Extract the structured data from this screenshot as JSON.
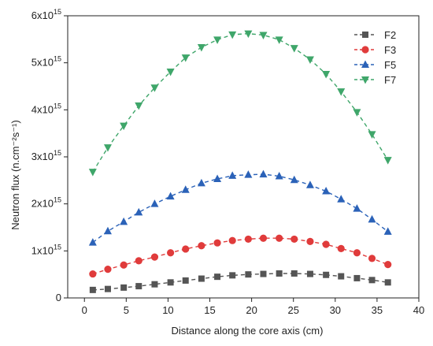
{
  "chart_data": {
    "type": "line",
    "xlabel": "Distance along the core axis (cm)",
    "ylabel": "Neutron flux (n.cm⁻²s⁻¹)",
    "xlim": [
      -2,
      40
    ],
    "ylim": [
      0,
      6000000000000000.0
    ],
    "xticks": [
      0,
      5,
      10,
      15,
      20,
      25,
      30,
      35,
      40
    ],
    "yticks": [
      {
        "value": 0,
        "base": "0",
        "exp": ""
      },
      {
        "value": 1000000000000000.0,
        "base": "1x10",
        "exp": "15"
      },
      {
        "value": 2000000000000000.0,
        "base": "2x10",
        "exp": "15"
      },
      {
        "value": 3000000000000000.0,
        "base": "3x10",
        "exp": "15"
      },
      {
        "value": 4000000000000000.0,
        "base": "4x10",
        "exp": "15"
      },
      {
        "value": 5000000000000000.0,
        "base": "5x10",
        "exp": "15"
      },
      {
        "value": 6000000000000000.0,
        "base": "6x10",
        "exp": "15"
      }
    ],
    "legend_position": "top-right",
    "grid": false,
    "x": [
      1.0,
      2.8,
      4.7,
      6.5,
      8.4,
      10.3,
      12.1,
      14.0,
      15.9,
      17.7,
      19.6,
      21.4,
      23.3,
      25.1,
      27.0,
      28.9,
      30.7,
      32.6,
      34.4,
      36.3
    ],
    "series": [
      {
        "name": "F2",
        "marker": "square",
        "color": "#555555",
        "values": [
          170000000000000.0,
          190000000000000.0,
          220000000000000.0,
          250000000000000.0,
          290000000000000.0,
          330000000000000.0,
          370000000000000.0,
          410000000000000.0,
          450000000000000.0,
          480000000000000.0,
          500000000000000.0,
          510000000000000.0,
          520000000000000.0,
          520000000000000.0,
          510000000000000.0,
          490000000000000.0,
          460000000000000.0,
          420000000000000.0,
          380000000000000.0,
          330000000000000.0
        ]
      },
      {
        "name": "F3",
        "marker": "circle",
        "color": "#e03b3b",
        "values": [
          510000000000000.0,
          610000000000000.0,
          700000000000000.0,
          790000000000000.0,
          870000000000000.0,
          960000000000000.0,
          1040000000000000.0,
          1110000000000000.0,
          1170000000000000.0,
          1220000000000000.0,
          1250000000000000.0,
          1270000000000000.0,
          1270000000000000.0,
          1250000000000000.0,
          1200000000000000.0,
          1140000000000000.0,
          1050000000000000.0,
          960000000000000.0,
          840000000000000.0,
          710000000000000.0
        ]
      },
      {
        "name": "F5",
        "marker": "triangle-up",
        "color": "#2b62b8",
        "values": [
          1180000000000000.0,
          1420000000000000.0,
          1620000000000000.0,
          1820000000000000.0,
          2000000000000000.0,
          2160000000000000.0,
          2300000000000000.0,
          2440000000000000.0,
          2530000000000000.0,
          2600000000000000.0,
          2620000000000000.0,
          2630000000000000.0,
          2590000000000000.0,
          2510000000000000.0,
          2400000000000000.0,
          2270000000000000.0,
          2100000000000000.0,
          1900000000000000.0,
          1670000000000000.0,
          1410000000000000.0
        ]
      },
      {
        "name": "F7",
        "marker": "triangle-down",
        "color": "#3fa66a",
        "values": [
          2680000000000000.0,
          3200000000000000.0,
          3660000000000000.0,
          4090000000000000.0,
          4470000000000000.0,
          4810000000000000.0,
          5110000000000000.0,
          5330000000000000.0,
          5490000000000000.0,
          5600000000000000.0,
          5620000000000000.0,
          5590000000000000.0,
          5490000000000000.0,
          5310000000000000.0,
          5070000000000000.0,
          4760000000000000.0,
          4390000000000000.0,
          3950000000000000.0,
          3480000000000000.0,
          2930000000000000.0
        ]
      }
    ]
  }
}
